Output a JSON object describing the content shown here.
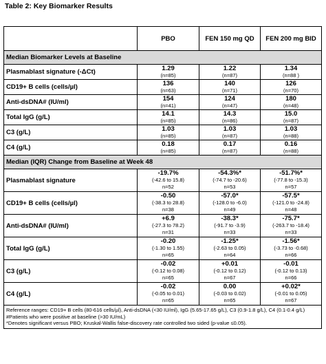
{
  "title": "Table 2:  Key Biomarker Results",
  "columns": [
    "PBO",
    "FEN 150 mg QD",
    "FEN 200 mg BID"
  ],
  "section_baseline": "Median Biomarker Levels at Baseline",
  "baseline_rows": [
    {
      "label": "Plasmablast signature (-ΔCt)",
      "values": [
        {
          "v": "1.29",
          "n": "(n=85)"
        },
        {
          "v": "1.22",
          "n": "(n=87)"
        },
        {
          "v": "1.34",
          "n": "(n=88 )"
        }
      ]
    },
    {
      "label": "CD19+ B cells (cells/µl)",
      "values": [
        {
          "v": "136",
          "n": "(n=63)"
        },
        {
          "v": "140",
          "n": "(n=71)"
        },
        {
          "v": "126",
          "n": "(n=70)"
        }
      ]
    },
    {
      "label": "Anti-dsDNA# (IU/ml)",
      "values": [
        {
          "v": "154",
          "n": "(n=41)"
        },
        {
          "v": "124",
          "n": "(n=47)"
        },
        {
          "v": "180",
          "n": "(n=48)"
        }
      ]
    },
    {
      "label": "Total IgG (g/L)",
      "values": [
        {
          "v": "14.1",
          "n": "(n=85)"
        },
        {
          "v": "14.3",
          "n": "(n=86)"
        },
        {
          "v": "15.0",
          "n": "(n=87)"
        }
      ]
    },
    {
      "label": "C3 (g/L)",
      "values": [
        {
          "v": "1.03",
          "n": "(n=85)"
        },
        {
          "v": "1.03",
          "n": "(n=87)"
        },
        {
          "v": "1.03",
          "n": "(n=88)"
        }
      ]
    },
    {
      "label": "C4 (g/L)",
      "values": [
        {
          "v": "0.18",
          "n": "(n=85)"
        },
        {
          "v": "0.17",
          "n": "(n=87)"
        },
        {
          "v": "0.16",
          "n": "(n=88)"
        }
      ]
    }
  ],
  "section_change": "Median (IQR) Change from Baseline at Week 48",
  "change_rows": [
    {
      "label": "Plasmablast signature",
      "values": [
        {
          "v": "-19.7%",
          "iqr": "(-42.6 to 15.8)",
          "n": "n=52"
        },
        {
          "v": "-54.3%*",
          "iqr": "(-74.7 to -20.6)",
          "n": "n=53"
        },
        {
          "v": "-51.7%*",
          "iqr": "(-77.8 to -15.3)",
          "n": "n=57"
        }
      ]
    },
    {
      "label": "CD19+ B cells (cells/µl)",
      "values": [
        {
          "v": "-0.50",
          "iqr": "(-38.3 to 28.8)",
          "n": "n=38"
        },
        {
          "v": "-57.0*",
          "iqr": "(-128.0 to -6.0)",
          "n": "n=49"
        },
        {
          "v": "-57.5*",
          "iqr": "(-121.0 to -24.8)",
          "n": "n=48"
        }
      ]
    },
    {
      "label": "Anti-dsDNA# (IU/ml)",
      "values": [
        {
          "v": "+6.9",
          "iqr": "(-27.3 to 78.2)",
          "n": "n=31"
        },
        {
          "v": "-38.3*",
          "iqr": "(-91.7 to -3.9)",
          "n": "n=33"
        },
        {
          "v": "-75.7*",
          "iqr": "(-263.7 to -18.4)",
          "n": "n=33"
        }
      ]
    },
    {
      "label": "Total IgG (g/L)",
      "values": [
        {
          "v": "-0.20",
          "iqr": "(-1.30 to 1.55)",
          "n": "n=65"
        },
        {
          "v": "-1.25*",
          "iqr": "(-2.63 to 0.05)",
          "n": "n=64"
        },
        {
          "v": "-1.56*",
          "iqr": "(-3.73 to -0.68)",
          "n": "n=66"
        }
      ]
    },
    {
      "label": "C3 (g/L)",
      "values": [
        {
          "v": "-0.02",
          "iqr": "(-0.12 to 0.08)",
          "n": "n=65"
        },
        {
          "v": "+0.01",
          "iqr": "(-0.12 to 0.12)",
          "n": "n=67"
        },
        {
          "v": "-0.01",
          "iqr": "(-0.12 to 0.13)",
          "n": "n=66"
        }
      ]
    },
    {
      "label": "C4 (g/L)",
      "values": [
        {
          "v": "",
          "iqr": "",
          "n": ""
        },
        {
          "v": "0.00",
          "iqr": "(-0.03 to 0.02)",
          "n": "n=65"
        },
        {
          "v": "+0.02*",
          "iqr": "(-0.01 to 0.05)",
          "n": "n=67"
        }
      ]
    }
  ],
  "c4_pbo": {
    "v": "-0.02",
    "iqr": "(-0.05 to 0.01)",
    "n": "n=65"
  },
  "footnotes": [
    "Reference ranges: CD19+ B cells (80-616 cells/µl), Anti-dsDNA (<30 IU/ml), IgG (5.65-17.65 g/L), C3 (0.9-1.8 g/L), C4 (0.1-0.4 g/L)",
    "#Patients who were positive at baseline (>30 IU/mL)",
    "*Denotes significant versus PBO; Kruskal-Wallis false-discovery rate controlled two sided (p-value ≤0.05)."
  ]
}
